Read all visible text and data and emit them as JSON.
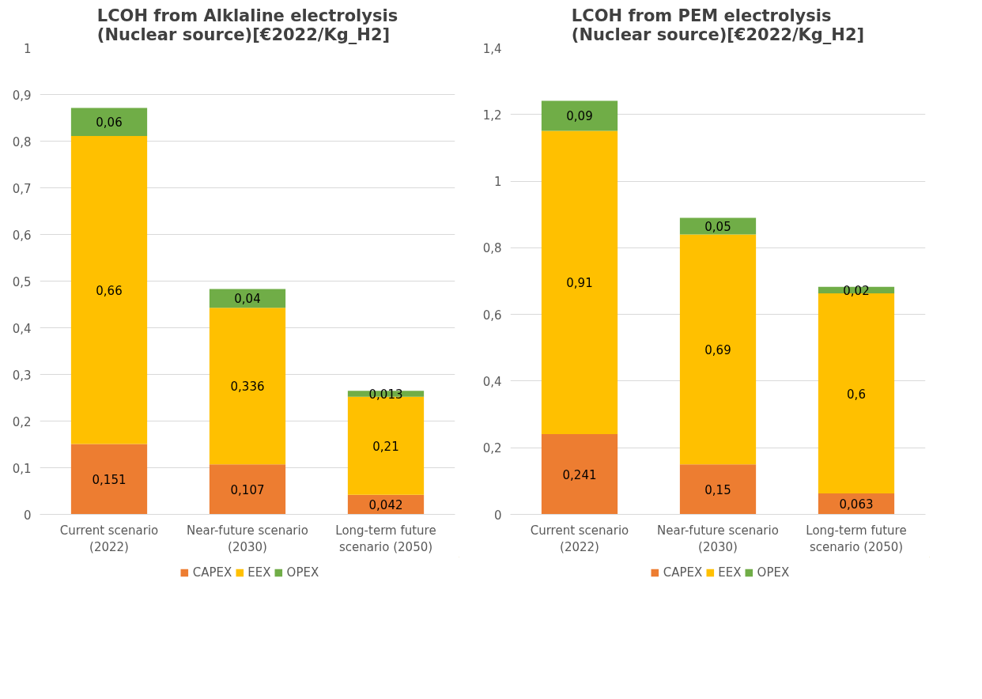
{
  "chart_data": [
    {
      "type": "bar",
      "title": "LCOH from Alklaline electrolysis (Nuclear source)[€2022/Kg_H2]",
      "categories": [
        "Current scenario (2022)",
        "Near-future scenario (2030)",
        "Long-term future scenario (2050)"
      ],
      "stacked": true,
      "series": [
        {
          "name": "CAPEX",
          "color": "#ed7d31",
          "values": [
            0.151,
            0.107,
            0.042
          ],
          "value_labels": [
            "0,151",
            "0,107",
            "0,042"
          ]
        },
        {
          "name": "EEX",
          "color": "#ffc000",
          "values": [
            0.66,
            0.336,
            0.21
          ],
          "value_labels": [
            "0,66",
            "0,336",
            "0,21"
          ]
        },
        {
          "name": "OPEX",
          "color": "#70ad47",
          "values": [
            0.06,
            0.04,
            0.013
          ],
          "value_labels": [
            "0,06",
            "0,04",
            "0,013"
          ]
        }
      ],
      "ylim": [
        0,
        1
      ],
      "yticks": [
        0,
        {
          "value": 0.1,
          "label": "0,1"
        },
        {
          "value": 0.2,
          "label": "0,2"
        },
        {
          "value": 0.3,
          "label": "0,3"
        },
        {
          "value": 0.4,
          "label": "0,4"
        },
        {
          "value": 0.5,
          "label": "0,5"
        },
        {
          "value": 0.6,
          "label": "0,6"
        },
        {
          "value": 0.7,
          "label": "0,7"
        },
        {
          "value": 0.8,
          "label": "0,8"
        },
        {
          "value": 0.9,
          "label": "0,9"
        },
        1
      ],
      "grid": "y",
      "legend": "bottom"
    },
    {
      "type": "bar",
      "title": "LCOH from PEM electrolysis (Nuclear source)[€2022/Kg_H2]",
      "categories": [
        "Current scenario (2022)",
        "Near-future scenario (2030)",
        "Long-term future scenario (2050)"
      ],
      "stacked": true,
      "series": [
        {
          "name": "CAPEX",
          "color": "#ed7d31",
          "values": [
            0.241,
            0.15,
            0.063
          ],
          "value_labels": [
            "0,241",
            "0,15",
            "0,063"
          ]
        },
        {
          "name": "EEX",
          "color": "#ffc000",
          "values": [
            0.91,
            0.69,
            0.6
          ],
          "value_labels": [
            "0,91",
            "0,69",
            "0,6"
          ]
        },
        {
          "name": "OPEX",
          "color": "#70ad47",
          "values": [
            0.09,
            0.05,
            0.02
          ],
          "value_labels": [
            "0,09",
            "0,05",
            "0,02"
          ]
        }
      ],
      "ylim": [
        0,
        1.4
      ],
      "yticks": [
        0,
        {
          "value": 0.2,
          "label": "0,2"
        },
        {
          "value": 0.4,
          "label": "0,4"
        },
        {
          "value": 0.6,
          "label": "0,6"
        },
        {
          "value": 0.8,
          "label": "0,8"
        },
        1,
        {
          "value": 1.2,
          "label": "1,2"
        },
        {
          "value": 1.4,
          "label": "1,4"
        }
      ],
      "grid": "y",
      "legend": "bottom"
    }
  ]
}
